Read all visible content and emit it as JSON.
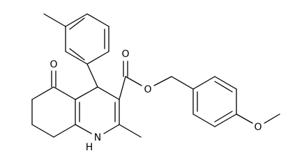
{
  "atoms": {
    "ketone_oxygen": "O",
    "carbonyl_oxygen": "O",
    "ester_oxygen": "O",
    "methoxy_oxygen": "O",
    "nitrogen": "N",
    "nitrogen_hydrogen": "H"
  }
}
